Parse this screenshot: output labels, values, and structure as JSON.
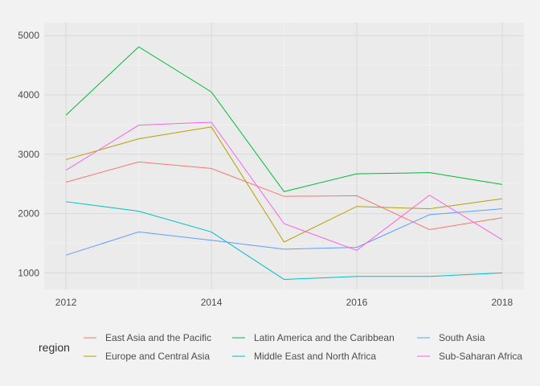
{
  "chart_data": {
    "type": "line",
    "title": "",
    "xlabel": "",
    "ylabel": "",
    "x": [
      2012,
      2013,
      2014,
      2015,
      2016,
      2017,
      2018
    ],
    "xticks": [
      2012,
      2014,
      2016,
      2018
    ],
    "yticks": [
      1000,
      2000,
      3000,
      4000,
      5000
    ],
    "xlim": [
      2011.7,
      2018.3
    ],
    "ylim": [
      720,
      5220
    ],
    "grid": true,
    "legend": {
      "title": "region",
      "position": "bottom"
    },
    "series": [
      {
        "name": "East Asia and the Pacific",
        "color": "#F8766D",
        "values": [
          2530,
          2870,
          2760,
          2290,
          2300,
          1730,
          1930
        ]
      },
      {
        "name": "Europe and Central Asia",
        "color": "#B79F00",
        "values": [
          2910,
          3260,
          3460,
          1520,
          2120,
          2080,
          2250
        ]
      },
      {
        "name": "Latin America and the Caribbean",
        "color": "#00BA38",
        "values": [
          3660,
          4810,
          4050,
          2370,
          2670,
          2690,
          2490
        ]
      },
      {
        "name": "Middle East and North Africa",
        "color": "#00BFC4",
        "values": [
          2200,
          2040,
          1690,
          890,
          940,
          940,
          1000
        ]
      },
      {
        "name": "South Asia",
        "color": "#619CFF",
        "values": [
          1300,
          1690,
          1550,
          1400,
          1430,
          1980,
          2080
        ]
      },
      {
        "name": "Sub-Saharan Africa",
        "color": "#F564E3",
        "values": [
          2730,
          3490,
          3540,
          1830,
          1380,
          2310,
          1560
        ]
      }
    ]
  }
}
